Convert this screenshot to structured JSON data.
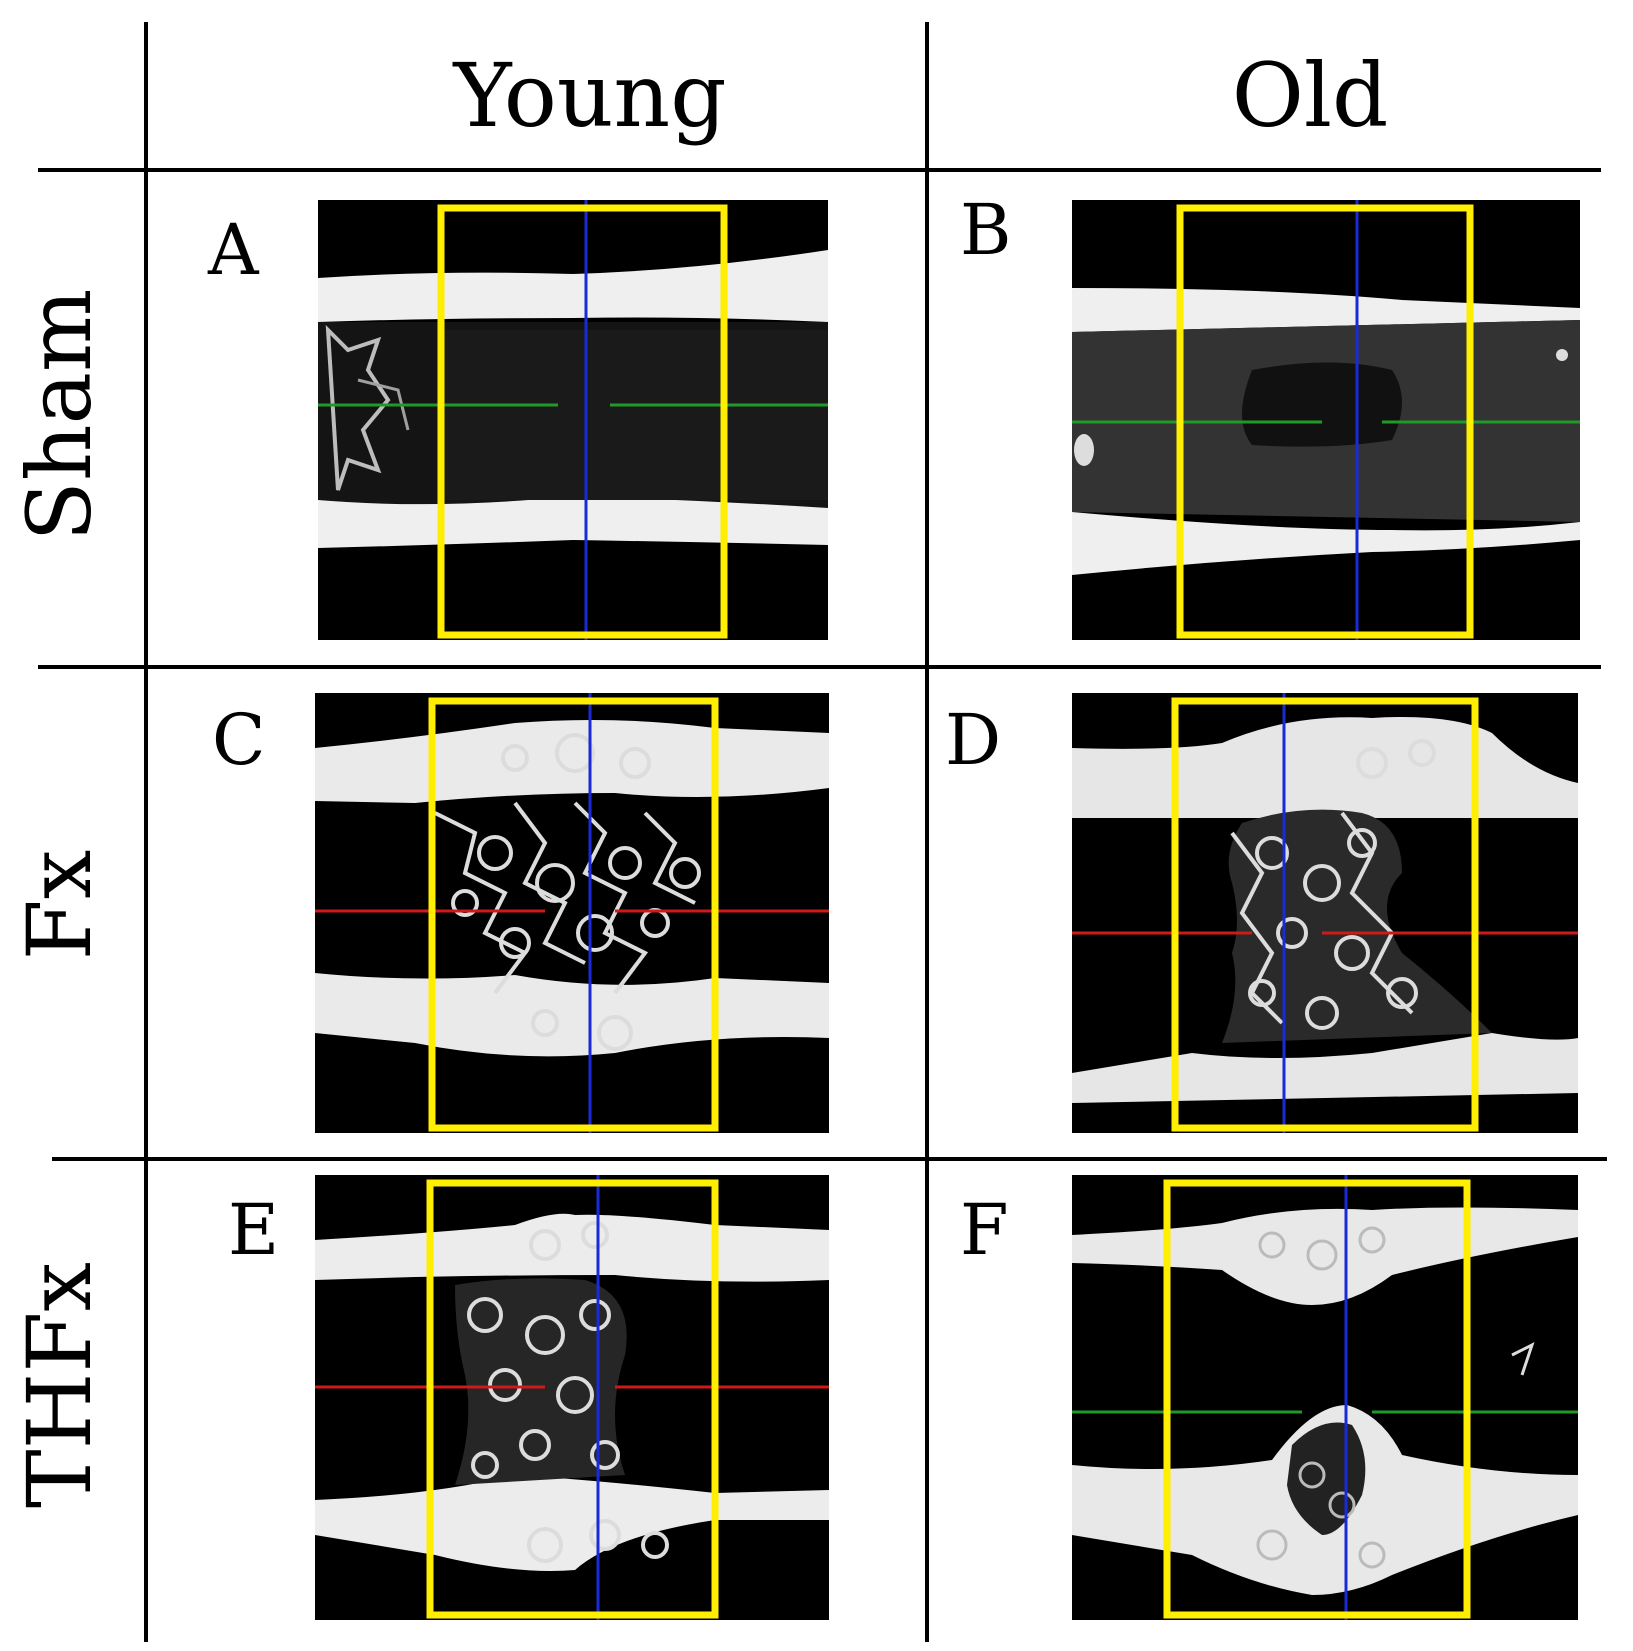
{
  "column_headers": [
    "Young",
    "Old"
  ],
  "row_headers": [
    "Sham",
    "Fx",
    "THFx"
  ],
  "panel_letters": [
    "A",
    "B",
    "C",
    "D",
    "E",
    "F"
  ],
  "colors": {
    "roi_box": "#ffee00",
    "vertical_line": "#1a2bd6",
    "horizontal_line_sham": "#1f9a28",
    "horizontal_line_fracture": "#d01a1a",
    "horizontal_line_thfx_old": "#1f9a28",
    "bone": "#f2f2f2",
    "marrow": "#0a0a0a",
    "soft_tissue": "#2a2a2a"
  },
  "panels": [
    {
      "letter": "A",
      "group": "Sham",
      "age": "Young",
      "h_line_color": "green"
    },
    {
      "letter": "B",
      "group": "Sham",
      "age": "Old",
      "h_line_color": "green"
    },
    {
      "letter": "C",
      "group": "Fx",
      "age": "Young",
      "h_line_color": "red"
    },
    {
      "letter": "D",
      "group": "Fx",
      "age": "Old",
      "h_line_color": "red"
    },
    {
      "letter": "E",
      "group": "THFx",
      "age": "Young",
      "h_line_color": "red"
    },
    {
      "letter": "F",
      "group": "THFx",
      "age": "Old",
      "h_line_color": "green"
    }
  ]
}
